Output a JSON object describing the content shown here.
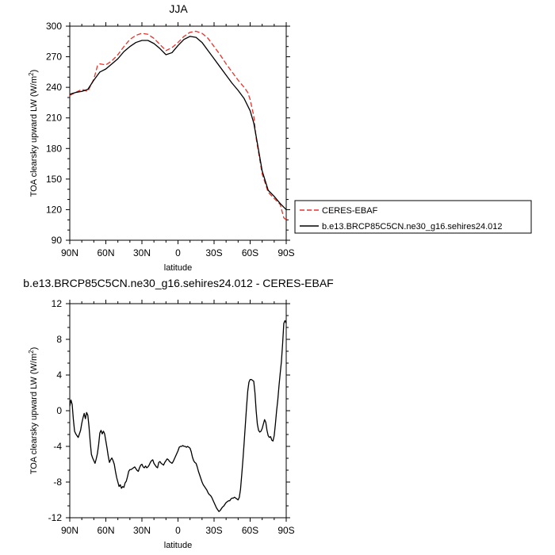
{
  "chart_data": [
    {
      "type": "line",
      "title": "JJA",
      "xlabel": "latitude",
      "ylabel": "TOA clearsky upward LW (W/m²)",
      "ylim": [
        90,
        300
      ],
      "xlim": [
        90,
        -90
      ],
      "x_ticks": [
        90,
        60,
        30,
        0,
        -30,
        -60,
        -90
      ],
      "x_tick_labels": [
        "90N",
        "60N",
        "30N",
        "0",
        "30S",
        "60S",
        "90S"
      ],
      "y_ticks": [
        90,
        120,
        150,
        180,
        210,
        240,
        270,
        300
      ],
      "y_tick_labels": [
        "90",
        "120",
        "150",
        "180",
        "210",
        "240",
        "270",
        "300"
      ],
      "grid": false,
      "legend_position": "right",
      "series": [
        {
          "name": "CERES-EBAF",
          "color": "#e8312a",
          "dash": "dashed",
          "x": [
            90,
            85,
            80,
            75,
            70,
            67,
            65,
            60,
            55,
            50,
            45,
            40,
            35,
            30,
            25,
            20,
            15,
            10,
            5,
            0,
            -5,
            -10,
            -15,
            -20,
            -25,
            -30,
            -35,
            -40,
            -45,
            -50,
            -55,
            -58,
            -60,
            -63,
            -65,
            -70,
            -75,
            -80,
            -85,
            -88,
            -90
          ],
          "y": [
            232,
            235,
            238,
            236,
            248,
            261,
            263,
            262,
            266,
            272,
            280,
            287,
            291,
            293,
            292,
            288,
            282,
            276,
            279,
            284,
            290,
            294,
            295,
            293,
            288,
            280,
            272,
            263,
            255,
            247,
            240,
            235,
            228,
            212,
            190,
            155,
            137,
            131,
            125,
            112,
            110
          ]
        },
        {
          "name": "b.e13.BRCP85C5CN.ne30_g16.sehires24.012",
          "color": "#000000",
          "dash": "solid",
          "x": [
            90,
            88,
            85,
            80,
            75,
            70,
            65,
            60,
            55,
            50,
            45,
            40,
            35,
            30,
            25,
            20,
            15,
            10,
            5,
            0,
            -5,
            -10,
            -15,
            -20,
            -25,
            -30,
            -35,
            -40,
            -45,
            -50,
            -55,
            -60,
            -63,
            -65,
            -70,
            -75,
            -80,
            -85,
            -90
          ],
          "y": [
            233,
            234,
            235,
            236,
            238,
            247,
            255,
            258,
            263,
            268,
            275,
            280,
            284,
            286,
            286,
            283,
            278,
            272,
            274,
            281,
            287,
            290,
            289,
            284,
            276,
            268,
            260,
            252,
            244,
            237,
            229,
            217,
            205,
            192,
            158,
            139,
            133,
            126,
            120
          ]
        }
      ]
    },
    {
      "type": "line",
      "title": "b.e13.BRCP85C5CN.ne30_g16.sehires24.012 - CERES-EBAF",
      "xlabel": "latitude",
      "ylabel": "TOA clearsky upward LW (W/m²)",
      "ylim": [
        -12,
        12
      ],
      "xlim": [
        90,
        -90
      ],
      "x_ticks": [
        90,
        60,
        30,
        0,
        -30,
        -60,
        -90
      ],
      "x_tick_labels": [
        "90N",
        "60N",
        "30N",
        "0",
        "30S",
        "60S",
        "90S"
      ],
      "y_ticks": [
        -12,
        -8,
        -4,
        0,
        4,
        8,
        12
      ],
      "y_tick_labels": [
        "-12",
        "-8",
        "-4",
        "0",
        "4",
        "8",
        "12"
      ],
      "grid": false,
      "series": [
        {
          "color": "#000000",
          "dash": "solid",
          "x": [
            90,
            89,
            88,
            87,
            86,
            85,
            83,
            81,
            80,
            79,
            78,
            77,
            76,
            75,
            74,
            73,
            72,
            71,
            70,
            69,
            68,
            67,
            66,
            65,
            64,
            63,
            62,
            61,
            60,
            59,
            58,
            57,
            56,
            55,
            54,
            53,
            52,
            51,
            50,
            49,
            48,
            47,
            46,
            45,
            44,
            43,
            42,
            41,
            40,
            39,
            38,
            37,
            36,
            35,
            34,
            33,
            32,
            31,
            30,
            29,
            28,
            27,
            26,
            25,
            24,
            23,
            22,
            21,
            20,
            19,
            18,
            17,
            16,
            15,
            14,
            13,
            12,
            11,
            10,
            9,
            8,
            7,
            6,
            5,
            4,
            3,
            2,
            1,
            0,
            -1,
            -2,
            -3,
            -4,
            -5,
            -6,
            -7,
            -8,
            -9,
            -10,
            -11,
            -12,
            -13,
            -14,
            -15,
            -16,
            -17,
            -18,
            -19,
            -20,
            -21,
            -22,
            -23,
            -24,
            -25,
            -26,
            -27,
            -28,
            -29,
            -30,
            -31,
            -32,
            -33,
            -34,
            -35,
            -36,
            -37,
            -38,
            -39,
            -40,
            -41,
            -42,
            -43,
            -44,
            -45,
            -46,
            -47,
            -48,
            -49,
            -50,
            -51,
            -52,
            -53,
            -54,
            -55,
            -56,
            -57,
            -58,
            -59,
            -60,
            -61,
            -62,
            -63,
            -64,
            -65,
            -66,
            -67,
            -68,
            -69,
            -70,
            -71,
            -72,
            -73,
            -74,
            -75,
            -76,
            -77,
            -78,
            -79,
            -80,
            -81,
            -82,
            -83,
            -84,
            -85,
            -86,
            -87,
            -88,
            -89,
            -90
          ],
          "y": [
            0.5,
            1.2,
            0.7,
            -1.0,
            -2.3,
            -2.6,
            -3.0,
            -2.2,
            -1.4,
            -0.8,
            -0.3,
            -0.9,
            -0.2,
            -0.5,
            -1.8,
            -3.5,
            -4.9,
            -5.3,
            -5.6,
            -5.9,
            -5.4,
            -4.8,
            -3.8,
            -2.5,
            -2.2,
            -2.6,
            -2.3,
            -2.6,
            -3.4,
            -4.2,
            -5.1,
            -5.8,
            -5.5,
            -5.3,
            -5.6,
            -6.0,
            -6.8,
            -7.5,
            -8.0,
            -8.5,
            -8.3,
            -8.7,
            -8.5,
            -8.6,
            -8.1,
            -7.9,
            -7.4,
            -6.8,
            -6.6,
            -6.6,
            -6.5,
            -6.4,
            -6.3,
            -6.5,
            -6.7,
            -6.8,
            -6.4,
            -6.1,
            -6.0,
            -6.3,
            -6.4,
            -6.2,
            -6.4,
            -6.3,
            -6.1,
            -5.8,
            -5.6,
            -5.5,
            -5.9,
            -6.1,
            -6.3,
            -6.4,
            -5.8,
            -5.7,
            -5.9,
            -6.0,
            -6.1,
            -5.8,
            -5.6,
            -5.4,
            -5.5,
            -5.7,
            -5.8,
            -5.9,
            -5.7,
            -5.4,
            -5.1,
            -4.8,
            -4.5,
            -4.1,
            -4.0,
            -4.0,
            -3.9,
            -4.0,
            -4.0,
            -4.1,
            -4.0,
            -4.1,
            -4.2,
            -4.6,
            -5.2,
            -5.6,
            -5.8,
            -5.9,
            -6.3,
            -6.8,
            -7.2,
            -7.6,
            -8.0,
            -8.3,
            -8.5,
            -8.7,
            -8.9,
            -9.2,
            -9.4,
            -9.5,
            -9.7,
            -10.0,
            -10.3,
            -10.6,
            -10.9,
            -11.1,
            -11.3,
            -11.2,
            -11.0,
            -10.8,
            -10.7,
            -10.5,
            -10.3,
            -10.2,
            -10.1,
            -10.1,
            -9.9,
            -9.8,
            -9.8,
            -9.7,
            -9.8,
            -9.9,
            -10.0,
            -9.7,
            -8.8,
            -7.2,
            -5.5,
            -3.6,
            -1.6,
            0.4,
            2.2,
            3.2,
            3.5,
            3.5,
            3.4,
            3.3,
            2.0,
            0.0,
            -1.5,
            -2.2,
            -2.4,
            -2.3,
            -2.0,
            -1.5,
            -1.0,
            -1.3,
            -2.2,
            -2.8,
            -3.0,
            -2.9,
            -3.3,
            -3.4,
            -2.8,
            -1.5,
            0.0,
            1.2,
            2.8,
            4.2,
            5.5,
            7.5,
            9.8,
            10.1,
            9.8
          ]
        }
      ]
    }
  ],
  "legend": {
    "items": [
      {
        "label": "CERES-EBAF",
        "color": "#e8312a",
        "dash": "dashed"
      },
      {
        "label": "b.e13.BRCP85C5CN.ne30_g16.sehires24.012",
        "color": "#000000",
        "dash": "solid"
      }
    ]
  }
}
